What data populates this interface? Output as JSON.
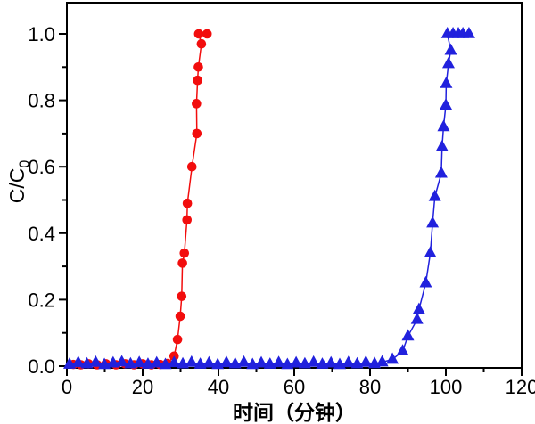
{
  "figure": {
    "background": "#ffffff",
    "frame_color": "#000000",
    "tick_color": "#000000",
    "text_color": "#000000"
  },
  "chart_data": {
    "type": "scatter",
    "title": "",
    "xlabel": "时间（分钟）",
    "ylabel": "C/C0",
    "ylabel_main": "C/C",
    "ylabel_sub": "0",
    "xlim": [
      0,
      120
    ],
    "ylim": [
      0,
      1.1
    ],
    "grid": false,
    "legend": null,
    "frame": "box",
    "x_major_ticks": [
      0,
      20,
      40,
      60,
      80,
      100,
      120
    ],
    "x_tick_labels": [
      "0",
      "20",
      "40",
      "60",
      "80",
      "100",
      "120"
    ],
    "x_minor_ticks": [
      10,
      30,
      50,
      70,
      90,
      110
    ],
    "y_major_ticks": [
      0,
      0.2,
      0.4,
      0.6,
      0.8,
      1.0
    ],
    "y_tick_labels": [
      "0.0",
      "0.2",
      "0.4",
      "0.6",
      "0.8",
      "1.0"
    ],
    "y_minor_ticks": [
      0.1,
      0.3,
      0.5,
      0.7,
      0.9
    ],
    "series": [
      {
        "name": "red-circles",
        "marker": "circle",
        "color": "#f20d0d",
        "line_color": "#f20d0d",
        "points": [
          [
            1.7,
            0.005
          ],
          [
            3.7,
            0.004
          ],
          [
            5.7,
            0.007
          ],
          [
            8.0,
            0.004
          ],
          [
            10.3,
            0.007
          ],
          [
            13.0,
            0.004
          ],
          [
            15.4,
            0.007
          ],
          [
            17.7,
            0.004
          ],
          [
            20.0,
            0.007
          ],
          [
            22.3,
            0.004
          ],
          [
            24.6,
            0.005
          ],
          [
            26.5,
            0.008
          ],
          [
            28.3,
            0.03
          ],
          [
            29.2,
            0.08
          ],
          [
            29.9,
            0.15
          ],
          [
            30.3,
            0.21
          ],
          [
            30.5,
            0.31
          ],
          [
            31.0,
            0.34
          ],
          [
            31.7,
            0.44
          ],
          [
            31.8,
            0.49
          ],
          [
            33.0,
            0.6
          ],
          [
            34.3,
            0.7
          ],
          [
            34.2,
            0.79
          ],
          [
            34.5,
            0.86
          ],
          [
            34.7,
            0.9
          ],
          [
            35.5,
            0.97
          ],
          [
            34.8,
            1.0
          ],
          [
            37.0,
            1.0
          ]
        ]
      },
      {
        "name": "blue-triangles",
        "marker": "triangle-up",
        "color": "#2121dd",
        "line_color": "#2121dd",
        "points": [
          [
            0.7,
            0.005
          ],
          [
            3.0,
            0.01
          ],
          [
            5.3,
            0.006
          ],
          [
            7.6,
            0.011
          ],
          [
            9.9,
            0.004
          ],
          [
            12.2,
            0.009
          ],
          [
            14.5,
            0.012
          ],
          [
            16.8,
            0.006
          ],
          [
            19.1,
            0.01
          ],
          [
            21.4,
            0.005
          ],
          [
            23.7,
            0.009
          ],
          [
            26.0,
            0.004
          ],
          [
            28.3,
            0.01
          ],
          [
            30.6,
            0.006
          ],
          [
            32.9,
            0.011
          ],
          [
            35.2,
            0.005
          ],
          [
            37.5,
            0.009
          ],
          [
            39.8,
            0.004
          ],
          [
            42.1,
            0.01
          ],
          [
            44.4,
            0.006
          ],
          [
            46.7,
            0.011
          ],
          [
            49.0,
            0.004
          ],
          [
            51.3,
            0.009
          ],
          [
            53.6,
            0.005
          ],
          [
            55.9,
            0.01
          ],
          [
            58.2,
            0.004
          ],
          [
            60.5,
            0.009
          ],
          [
            62.8,
            0.006
          ],
          [
            65.1,
            0.011
          ],
          [
            67.4,
            0.005
          ],
          [
            69.7,
            0.009
          ],
          [
            72.0,
            0.004
          ],
          [
            74.3,
            0.01
          ],
          [
            76.6,
            0.006
          ],
          [
            78.9,
            0.011
          ],
          [
            81.2,
            0.007
          ],
          [
            83.2,
            0.012
          ],
          [
            85.9,
            0.02
          ],
          [
            88.6,
            0.045
          ],
          [
            90.0,
            0.09
          ],
          [
            92.4,
            0.14
          ],
          [
            92.9,
            0.17
          ],
          [
            94.7,
            0.25
          ],
          [
            95.9,
            0.34
          ],
          [
            96.5,
            0.43
          ],
          [
            97.1,
            0.51
          ],
          [
            98.8,
            0.58
          ],
          [
            99.0,
            0.66
          ],
          [
            99.4,
            0.72
          ],
          [
            100.0,
            0.785
          ],
          [
            100.1,
            0.85
          ],
          [
            100.7,
            0.91
          ],
          [
            101.3,
            0.95
          ],
          [
            100.4,
            1.0
          ],
          [
            101.9,
            1.0
          ],
          [
            103.3,
            1.0
          ],
          [
            104.5,
            1.0
          ],
          [
            106.1,
            1.0
          ]
        ]
      }
    ]
  }
}
